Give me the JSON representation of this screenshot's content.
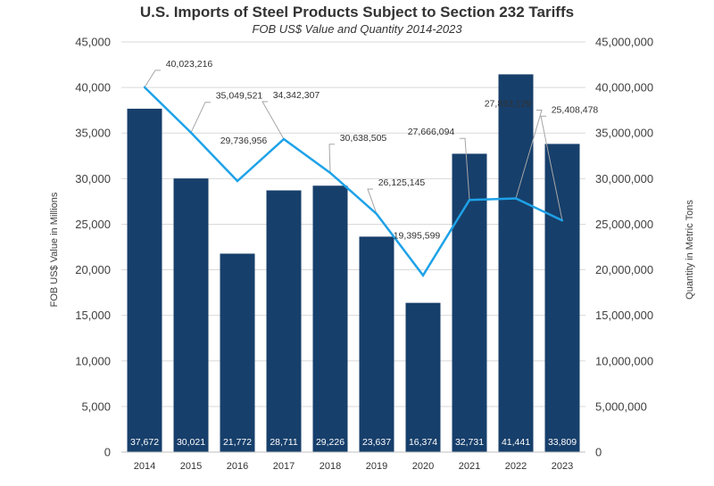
{
  "chart_data": {
    "type": "bar",
    "title": "U.S. Imports of Steel Products Subject to Section 232 Tariffs",
    "subtitle": "FOB US$ Value and Quantity 2014-2023",
    "categories": [
      "2014",
      "2015",
      "2016",
      "2017",
      "2018",
      "2019",
      "2020",
      "2021",
      "2022",
      "2023"
    ],
    "ylabel": "FOB US$ Value in Millions",
    "y2label": "Quantity in Metric Tons",
    "ylim": [
      0,
      45000
    ],
    "y2lim": [
      0,
      45000000
    ],
    "yticks": [
      "0",
      "5,000",
      "10,000",
      "15,000",
      "20,000",
      "25,000",
      "30,000",
      "35,000",
      "40,000",
      "45,000"
    ],
    "y2ticks": [
      "0",
      "5,000,000",
      "10,000,000",
      "15,000,000",
      "20,000,000",
      "25,000,000",
      "30,000,000",
      "35,000,000",
      "40,000,000",
      "45,000,000"
    ],
    "grid": true,
    "colors": {
      "bar": "#173f6b",
      "line": "#1ea2e8"
    },
    "series": [
      {
        "type": "bar",
        "axis": "left",
        "values": [
          37672,
          30021,
          21772,
          28711,
          29226,
          23637,
          16374,
          32731,
          41441,
          33809
        ],
        "labels": [
          "37,672",
          "30,021",
          "21,772",
          "28,711",
          "29,226",
          "23,637",
          "16,374",
          "32,731",
          "41,441",
          "33,809"
        ]
      },
      {
        "type": "line",
        "axis": "right",
        "values": [
          40023216,
          35049521,
          29736956,
          34342307,
          30638505,
          26125145,
          19395599,
          27666094,
          27833129,
          25408478
        ],
        "labels": [
          "40,023,216",
          "35,049,521",
          "29,736,956",
          "34,342,307",
          "30,638,505",
          "26,125,145",
          "19,395,599",
          "27,666,094",
          "27,833,129",
          "25,408,478"
        ]
      }
    ]
  }
}
